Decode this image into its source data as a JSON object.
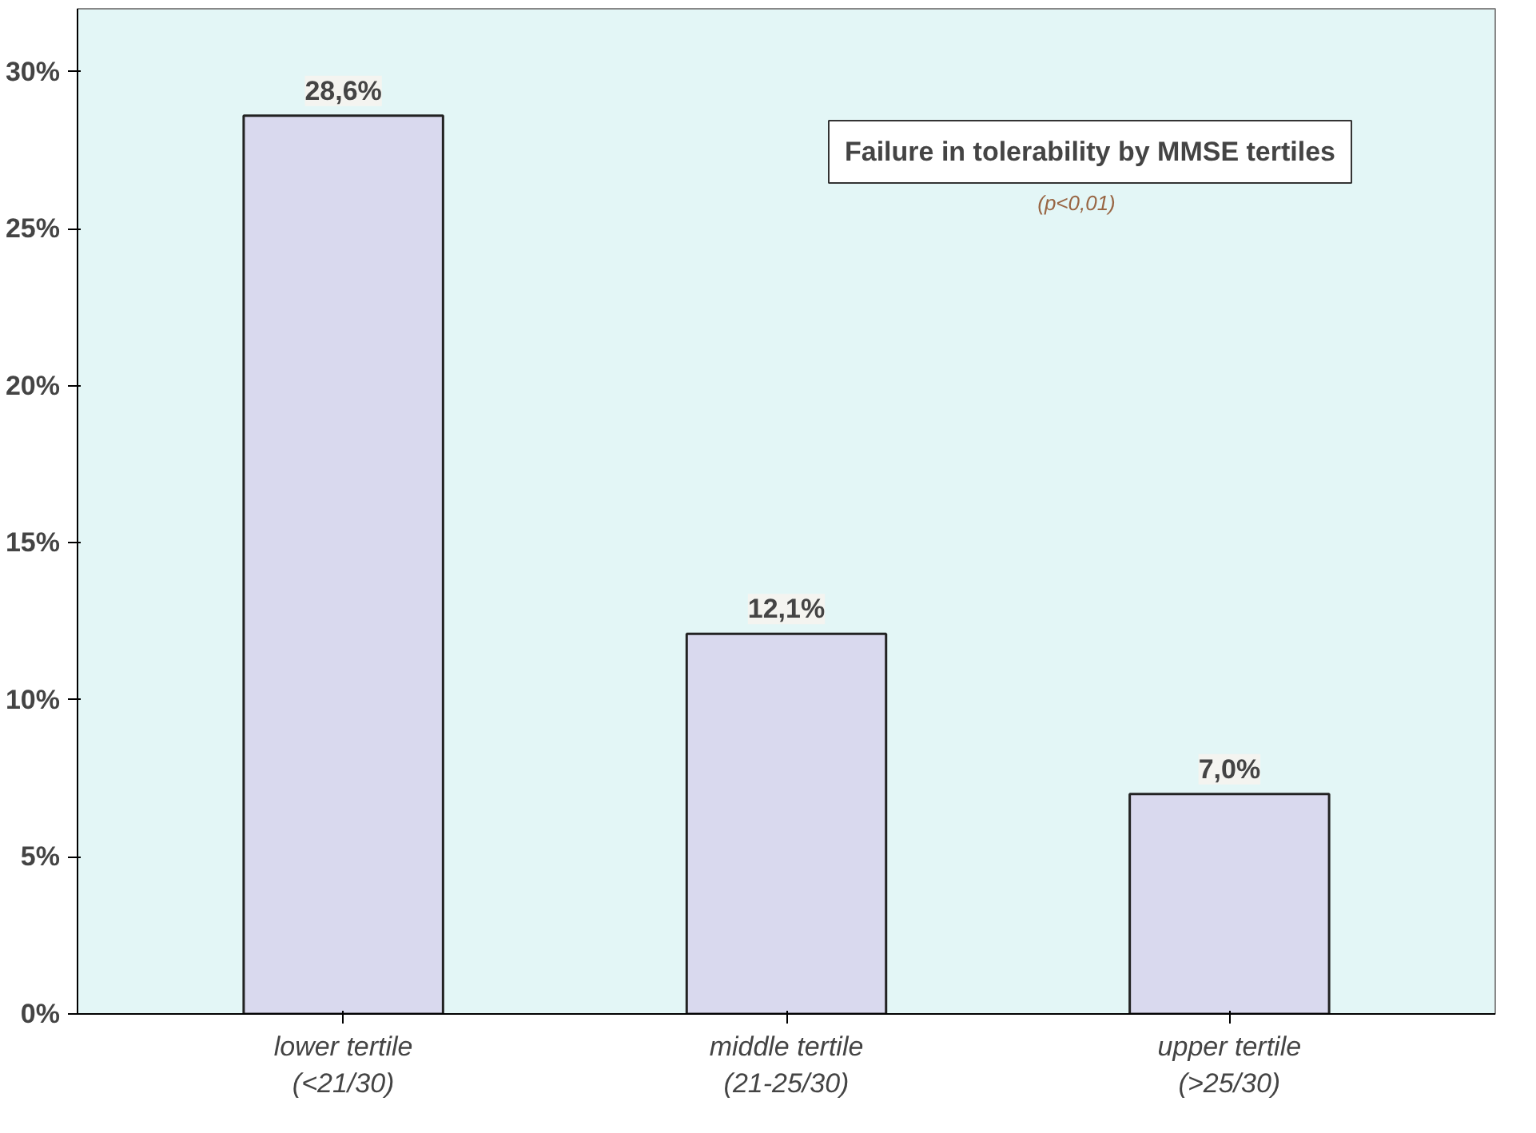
{
  "chart_data": {
    "type": "bar",
    "title": "Failure in tolerability by MMSE tertiles",
    "subtitle": "(p<0,01)",
    "categories": [
      "lower tertile\n(<21/30)",
      "middle tertile\n(21-25/30)",
      "upper tertile\n(>25/30)"
    ],
    "values": [
      28.6,
      12.1,
      7.0
    ],
    "color": "#d9d9ee",
    "value_labels": [
      "28,6%",
      "12,1%",
      "7,0%"
    ],
    "ylim": [
      0,
      32
    ],
    "yticks": [
      {
        "value": 0,
        "label": "0%"
      },
      {
        "value": 5,
        "label": "5%"
      },
      {
        "value": 10,
        "label": "10%"
      },
      {
        "value": 15,
        "label": "15%"
      },
      {
        "value": 20,
        "label": "20%"
      },
      {
        "value": 25,
        "label": "25%"
      },
      {
        "value": 30,
        "label": "30%"
      }
    ],
    "grid": false
  }
}
